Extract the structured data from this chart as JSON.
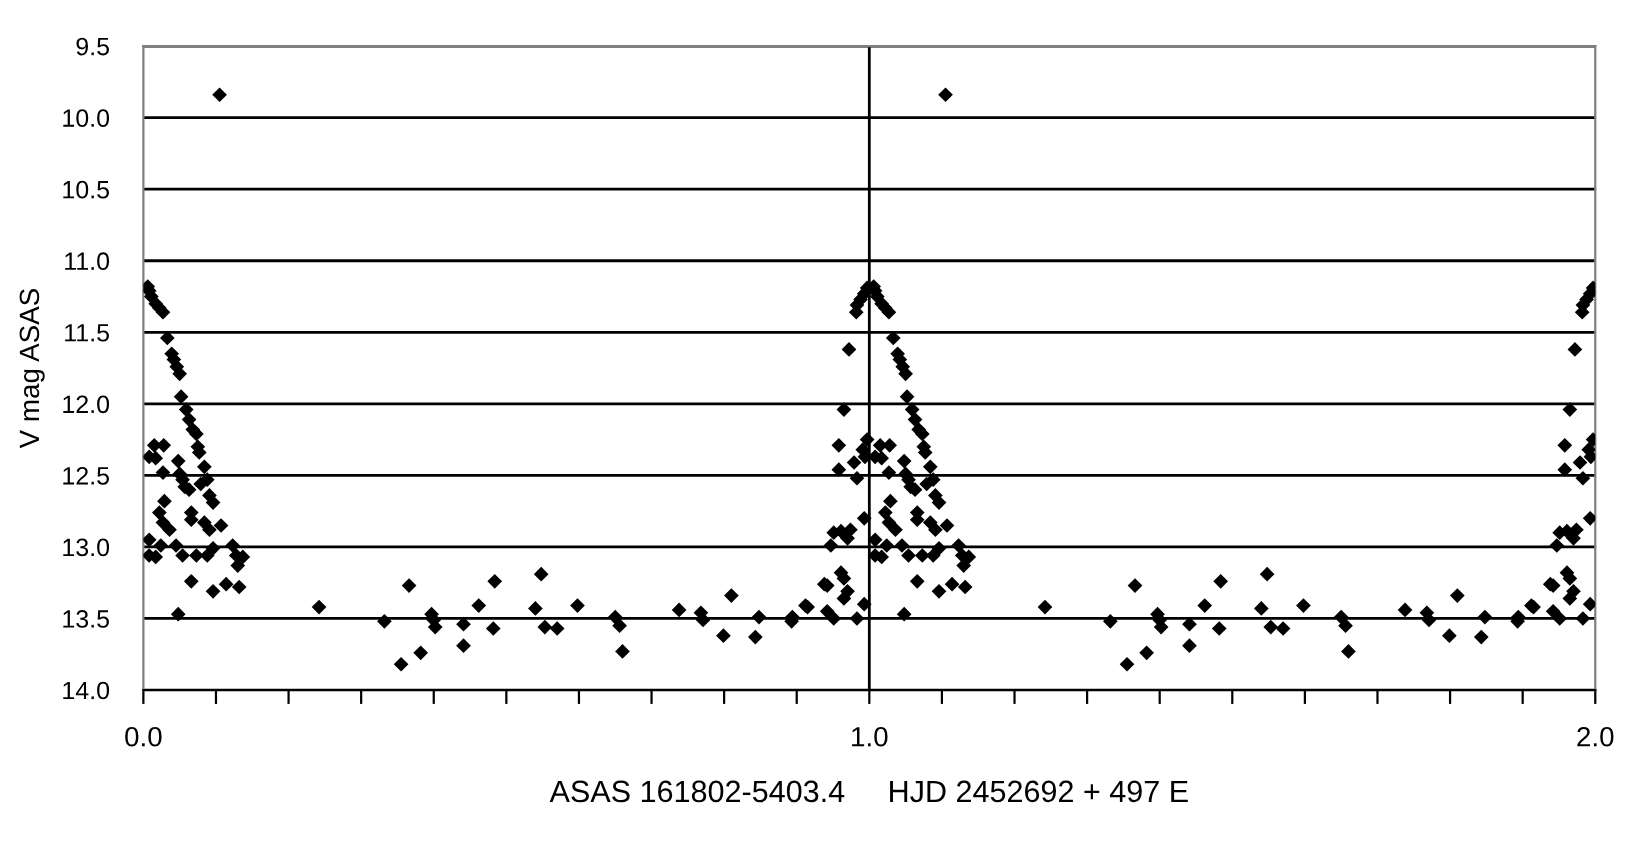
{
  "chart_data": {
    "type": "scatter",
    "xlabel": "ASAS 161802-5403.4     HJD 2452692 + 497 E",
    "ylabel": "V mag ASAS",
    "xlim": [
      0,
      2
    ],
    "ylim": [
      14.0,
      9.5
    ],
    "xticks": [
      {
        "value": 0,
        "label": "0.0"
      },
      {
        "value": 0.1,
        "label": null
      },
      {
        "value": 0.2,
        "label": null
      },
      {
        "value": 0.3,
        "label": null
      },
      {
        "value": 0.4,
        "label": null
      },
      {
        "value": 0.5,
        "label": null
      },
      {
        "value": 0.6,
        "label": null
      },
      {
        "value": 0.7,
        "label": null
      },
      {
        "value": 0.8,
        "label": null
      },
      {
        "value": 0.9,
        "label": null
      },
      {
        "value": 1,
        "label": "1.0"
      },
      {
        "value": 1.1,
        "label": null
      },
      {
        "value": 1.2,
        "label": null
      },
      {
        "value": 1.3,
        "label": null
      },
      {
        "value": 1.4,
        "label": null
      },
      {
        "value": 1.5,
        "label": null
      },
      {
        "value": 1.6,
        "label": null
      },
      {
        "value": 1.7,
        "label": null
      },
      {
        "value": 1.8,
        "label": null
      },
      {
        "value": 1.9,
        "label": null
      },
      {
        "value": 2,
        "label": "2.0"
      }
    ],
    "yticks": [
      9.5,
      {
        "value": 10,
        "label": "10.0"
      },
      10.5,
      {
        "value": 11,
        "label": "11.0"
      },
      11.5,
      {
        "value": 12,
        "label": "12.0"
      },
      12.5,
      {
        "value": 13,
        "label": "13.0"
      },
      13.5,
      {
        "value": 14,
        "label": "14.0"
      }
    ],
    "grid": "y",
    "marker": "diamond",
    "legend": false,
    "ref_lines": [
      {
        "axis": "x",
        "value": 1,
        "label": null,
        "color": "#000000"
      }
    ],
    "series": [
      {
        "color": "#000000",
        "x": [
          0.006,
          0.008,
          0.011,
          0.017,
          0.022,
          0.027,
          0.033,
          0.039,
          0.042,
          0.046,
          0.05,
          0.052,
          0.059,
          0.063,
          0.068,
          0.073,
          0.075,
          0.077,
          0.084,
          0.015,
          0.028,
          0.008,
          0.017,
          0.027,
          0.048,
          0.05,
          0.054,
          0.057,
          0.063,
          0.079,
          0.088,
          0.091,
          0.096,
          0.029,
          0.022,
          0.027,
          0.036,
          0.066,
          0.066,
          0.084,
          0.091,
          0.107,
          0.008,
          0.008,
          0.017,
          0.024,
          0.045,
          0.054,
          0.073,
          0.088,
          0.096,
          0.123,
          0.128,
          0.137,
          0.13,
          0.066,
          0.096,
          0.114,
          0.132,
          0.048,
          0.105,
          0.242,
          0.332,
          0.355,
          0.366,
          0.382,
          0.397,
          0.4,
          0.402,
          0.441,
          0.441,
          0.462,
          0.482,
          0.484,
          0.54,
          0.548,
          0.553,
          0.57,
          0.598,
          0.65,
          0.656,
          0.66,
          0.738,
          0.768,
          0.771,
          0.799,
          0.81,
          0.843,
          0.848,
          0.893,
          0.894,
          0.915,
          0.942,
          0.997,
          0.993,
          0.988,
          0.983,
          0.982,
          0.972,
          0.965,
          0.958,
          0.997,
          0.991,
          0.994,
          0.979,
          0.958,
          0.983,
          0.993,
          0.951,
          0.947,
          0.961,
          0.974,
          0.97,
          0.961,
          0.965,
          0.938,
          0.97,
          0.965,
          0.912,
          0.942,
          0.951,
          0.983,
          0.993,
          1.006,
          1.008,
          1.011,
          1.017,
          1.022,
          1.027,
          1.033,
          1.039,
          1.042,
          1.046,
          1.05,
          1.052,
          1.059,
          1.063,
          1.068,
          1.073,
          1.075,
          1.077,
          1.084,
          1.015,
          1.028,
          1.008,
          1.017,
          1.027,
          1.048,
          1.05,
          1.054,
          1.057,
          1.063,
          1.079,
          1.088,
          1.091,
          1.096,
          1.029,
          1.022,
          1.027,
          1.036,
          1.066,
          1.066,
          1.084,
          1.091,
          1.107,
          1.008,
          1.008,
          1.017,
          1.024,
          1.045,
          1.054,
          1.073,
          1.088,
          1.096,
          1.123,
          1.128,
          1.137,
          1.13,
          1.066,
          1.096,
          1.114,
          1.132,
          1.048,
          1.105,
          1.242,
          1.332,
          1.355,
          1.366,
          1.382,
          1.397,
          1.4,
          1.402,
          1.441,
          1.441,
          1.462,
          1.482,
          1.484,
          1.54,
          1.548,
          1.553,
          1.57,
          1.598,
          1.65,
          1.656,
          1.66,
          1.738,
          1.768,
          1.771,
          1.799,
          1.81,
          1.843,
          1.848,
          1.893,
          1.894,
          1.915,
          1.942,
          1.997,
          1.993,
          1.988,
          1.983,
          1.982,
          1.972,
          1.965,
          1.958,
          1.997,
          1.991,
          1.994,
          1.979,
          1.958,
          1.983,
          1.993,
          1.951,
          1.947,
          1.961,
          1.974,
          1.97,
          1.961,
          1.965,
          1.938,
          1.97,
          1.965,
          1.912,
          1.942,
          1.951,
          1.983,
          1.993
        ],
        "values": [
          11.18,
          11.21,
          11.25,
          11.3,
          11.33,
          11.36,
          11.54,
          11.65,
          11.69,
          11.74,
          11.79,
          11.95,
          12.04,
          12.11,
          12.18,
          12.21,
          12.3,
          12.34,
          12.44,
          12.29,
          12.29,
          12.37,
          12.38,
          12.48,
          12.4,
          12.49,
          12.53,
          12.58,
          12.6,
          12.56,
          12.53,
          12.64,
          12.69,
          12.68,
          12.76,
          12.83,
          12.88,
          12.76,
          12.81,
          12.83,
          12.88,
          12.85,
          12.95,
          13.06,
          13.07,
          12.99,
          12.99,
          13.06,
          13.06,
          13.06,
          13.01,
          12.99,
          13.06,
          13.07,
          13.13,
          13.24,
          13.31,
          13.26,
          13.28,
          13.47,
          9.84,
          13.42,
          13.52,
          13.82,
          13.27,
          13.74,
          13.47,
          13.51,
          13.56,
          13.54,
          13.69,
          13.41,
          13.57,
          13.24,
          13.43,
          13.19,
          13.56,
          13.57,
          13.41,
          13.49,
          13.55,
          13.73,
          13.44,
          13.46,
          13.51,
          13.62,
          13.34,
          13.63,
          13.49,
          13.52,
          13.49,
          13.42,
          13.27,
          11.19,
          11.23,
          11.27,
          11.31,
          11.36,
          11.62,
          12.04,
          12.29,
          12.25,
          12.32,
          12.37,
          12.41,
          12.46,
          12.52,
          12.8,
          12.9,
          12.99,
          12.89,
          12.88,
          12.94,
          13.18,
          13.22,
          13.26,
          13.31,
          13.36,
          13.41,
          13.45,
          13.5,
          13.5,
          13.4,
          11.18,
          11.21,
          11.25,
          11.3,
          11.33,
          11.36,
          11.54,
          11.65,
          11.69,
          11.74,
          11.79,
          11.95,
          12.04,
          12.11,
          12.18,
          12.21,
          12.3,
          12.34,
          12.44,
          12.29,
          12.29,
          12.37,
          12.38,
          12.48,
          12.4,
          12.49,
          12.53,
          12.58,
          12.6,
          12.56,
          12.53,
          12.64,
          12.69,
          12.68,
          12.76,
          12.83,
          12.88,
          12.76,
          12.81,
          12.83,
          12.88,
          12.85,
          12.95,
          13.06,
          13.07,
          12.99,
          12.99,
          13.06,
          13.06,
          13.06,
          13.01,
          12.99,
          13.06,
          13.07,
          13.13,
          13.24,
          13.31,
          13.26,
          13.28,
          13.47,
          9.84,
          13.42,
          13.52,
          13.82,
          13.27,
          13.74,
          13.47,
          13.51,
          13.56,
          13.54,
          13.69,
          13.41,
          13.57,
          13.24,
          13.43,
          13.19,
          13.56,
          13.57,
          13.41,
          13.49,
          13.55,
          13.73,
          13.44,
          13.46,
          13.51,
          13.62,
          13.34,
          13.63,
          13.49,
          13.52,
          13.49,
          13.42,
          13.27,
          11.19,
          11.23,
          11.27,
          11.31,
          11.36,
          11.62,
          12.04,
          12.29,
          12.25,
          12.32,
          12.37,
          12.41,
          12.46,
          12.52,
          12.8,
          12.9,
          12.99,
          12.89,
          12.88,
          12.94,
          13.18,
          13.22,
          13.26,
          13.31,
          13.36,
          13.41,
          13.45,
          13.5,
          13.5,
          13.4
        ]
      }
    ]
  }
}
